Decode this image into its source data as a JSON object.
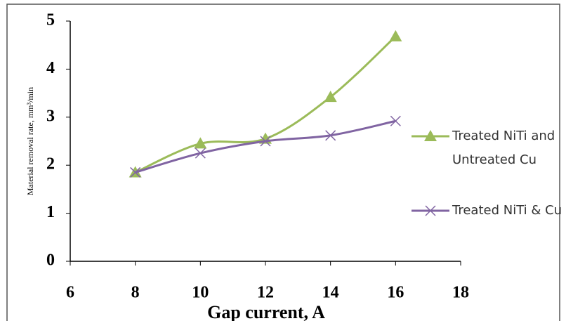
{
  "chart_data": {
    "type": "line",
    "x_label": "Gap current, A",
    "y_label": "Material removal rate, mm³/min",
    "x": [
      8,
      10,
      12,
      14,
      16
    ],
    "series": [
      {
        "name": "Treated NiTi and Untreated Cu",
        "color": "#9bbb59",
        "marker": "triangle",
        "values": [
          1.85,
          2.45,
          2.55,
          3.42,
          4.68
        ]
      },
      {
        "name": "Treated NiTi & Cu",
        "color": "#8064a2",
        "marker": "x",
        "values": [
          1.85,
          2.25,
          2.5,
          2.62,
          2.92
        ]
      }
    ],
    "xlim": [
      6,
      18
    ],
    "xticks": [
      6,
      8,
      10,
      12,
      14,
      16,
      18
    ],
    "ylim": [
      0,
      5
    ],
    "yticks": [
      0,
      1,
      2,
      3,
      4,
      5
    ],
    "grid": false,
    "legend": "right",
    "smooth": true
  }
}
